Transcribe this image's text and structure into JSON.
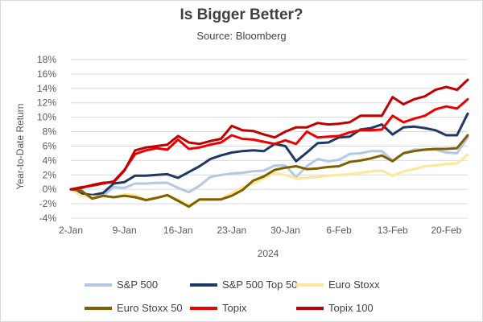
{
  "chart_data": {
    "type": "line",
    "title": "Is Bigger Better?",
    "subtitle": "Source: Bloomberg",
    "xlabel": "2024",
    "ylabel": "Year-to-Date Return",
    "x_tick_labels": [
      "2-Jan",
      "9-Jan",
      "16-Jan",
      "23-Jan",
      "30-Jan",
      "6-Feb",
      "13-Feb",
      "20-Feb"
    ],
    "y_tick_labels": [
      "-4%",
      "-2%",
      "0%",
      "2%",
      "4%",
      "6%",
      "8%",
      "10%",
      "12%",
      "14%",
      "16%",
      "18%"
    ],
    "ylim": [
      -4,
      18
    ],
    "y_unit": "%",
    "legend_position": "bottom",
    "grid": "horizontal",
    "days": [
      "2-Jan",
      "3-Jan",
      "4-Jan",
      "5-Jan",
      "8-Jan",
      "9-Jan",
      "10-Jan",
      "11-Jan",
      "12-Jan",
      "15-Jan",
      "16-Jan",
      "17-Jan",
      "18-Jan",
      "19-Jan",
      "22-Jan",
      "23-Jan",
      "24-Jan",
      "25-Jan",
      "26-Jan",
      "29-Jan",
      "30-Jan",
      "31-Jan",
      "1-Feb",
      "2-Feb",
      "5-Feb",
      "6-Feb",
      "7-Feb",
      "8-Feb",
      "9-Feb",
      "12-Feb",
      "13-Feb",
      "14-Feb",
      "15-Feb",
      "16-Feb",
      "19-Feb",
      "20-Feb",
      "21-Feb",
      "22-Feb"
    ],
    "series": [
      {
        "name": "S&P 500",
        "color": "#b4c7e7",
        "values": [
          0.0,
          -0.8,
          -1.1,
          -0.9,
          0.3,
          0.2,
          0.8,
          0.8,
          0.9,
          0.9,
          0.2,
          -0.4,
          0.5,
          1.7,
          2.0,
          2.2,
          2.3,
          2.5,
          2.6,
          3.3,
          3.3,
          1.7,
          3.2,
          4.2,
          3.9,
          4.1,
          4.9,
          5.0,
          5.3,
          5.3,
          4.0,
          5.0,
          5.5,
          5.5,
          5.5,
          5.1,
          5.0,
          7.2
        ]
      },
      {
        "name": "S&P 500 Top 50",
        "color": "#203864",
        "values": [
          0.0,
          -0.6,
          -0.8,
          -0.5,
          0.8,
          1.0,
          1.9,
          1.9,
          2.0,
          2.1,
          1.6,
          2.4,
          3.2,
          4.2,
          4.7,
          5.1,
          5.3,
          5.4,
          5.3,
          6.3,
          6.0,
          3.9,
          5.1,
          6.4,
          6.5,
          7.2,
          7.3,
          8.3,
          8.5,
          9.0,
          7.6,
          8.6,
          8.7,
          8.5,
          8.2,
          7.5,
          7.5,
          10.5
        ]
      },
      {
        "name": "Euro Stoxx",
        "color": "#ffe699",
        "values": [
          0.0,
          -0.9,
          -1.0,
          -1.0,
          -1.1,
          -0.7,
          -0.8,
          -1.4,
          -1.1,
          -0.9,
          -1.4,
          -2.2,
          -1.5,
          -1.5,
          -1.4,
          -0.5,
          0.3,
          0.8,
          1.5,
          2.3,
          2.0,
          1.5,
          1.6,
          1.7,
          1.9,
          2.0,
          2.1,
          2.3,
          2.5,
          2.6,
          1.9,
          2.5,
          2.8,
          3.2,
          3.3,
          3.5,
          3.6,
          4.8
        ]
      },
      {
        "name": "Euro Stoxx 50",
        "color": "#7f6000",
        "values": [
          0.0,
          -0.2,
          -1.3,
          -0.9,
          -1.1,
          -0.9,
          -1.1,
          -1.5,
          -1.2,
          -0.8,
          -1.6,
          -2.4,
          -1.4,
          -1.4,
          -1.4,
          -0.9,
          -0.1,
          1.2,
          1.8,
          2.7,
          3.0,
          3.2,
          2.8,
          2.9,
          3.1,
          3.2,
          3.8,
          4.0,
          4.3,
          4.7,
          3.9,
          5.0,
          5.3,
          5.5,
          5.6,
          5.6,
          5.7,
          7.5
        ]
      },
      {
        "name": "Topix",
        "color": "#ee0000",
        "values": [
          0.0,
          0.3,
          0.5,
          0.8,
          1.1,
          2.7,
          4.9,
          5.4,
          5.7,
          5.5,
          6.9,
          5.6,
          5.8,
          6.2,
          6.5,
          7.5,
          7.0,
          6.9,
          6.6,
          6.3,
          6.8,
          6.3,
          8.0,
          7.2,
          7.3,
          7.4,
          7.9,
          8.2,
          8.2,
          8.3,
          10.2,
          9.3,
          9.8,
          10.2,
          11.1,
          11.5,
          11.2,
          12.5
        ]
      },
      {
        "name": "Topix 100",
        "color": "#c00000",
        "values": [
          0.0,
          0.2,
          0.6,
          0.9,
          1.0,
          2.6,
          5.4,
          5.8,
          6.0,
          6.2,
          7.4,
          6.5,
          6.3,
          6.7,
          7.0,
          8.8,
          8.2,
          8.1,
          7.6,
          7.2,
          8.0,
          8.6,
          8.6,
          9.2,
          9.0,
          9.1,
          9.3,
          10.2,
          10.2,
          10.2,
          12.8,
          11.8,
          12.5,
          12.9,
          13.8,
          14.2,
          13.8,
          15.2
        ]
      }
    ]
  }
}
